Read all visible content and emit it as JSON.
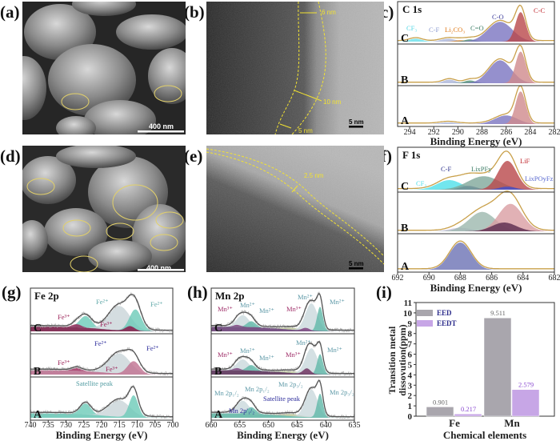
{
  "panel_labels": [
    "(a)",
    "(b)",
    "(c)",
    "(d)",
    "(e)",
    "(f)",
    "(g)",
    "(h)",
    "(i)"
  ],
  "images": {
    "a": {
      "kind": "SEM",
      "scale_bar": "400 nm"
    },
    "b": {
      "kind": "TEM",
      "scale_bar": "5 nm",
      "measurements": [
        "6 nm",
        "10 nm",
        "5 nm"
      ]
    },
    "d": {
      "kind": "SEM",
      "scale_bar": "400 nm"
    },
    "e": {
      "kind": "TEM",
      "scale_bar": "5 nm",
      "measurements": [
        "2.5 nm"
      ]
    }
  },
  "colors": {
    "envelope_cf": "#c9a04a",
    "envelope_fe_mn": "#555555",
    "eed": "#a9a6ad",
    "eedt": "#c7a6e6",
    "annotation_yellow": "#f2e232"
  },
  "chart_data": [
    {
      "panel": "c",
      "type": "area",
      "title": "C 1s",
      "xlabel": "Binding Energy (eV)",
      "xlim": [
        295,
        282
      ],
      "xticks": [
        294,
        292,
        290,
        288,
        286,
        284,
        282
      ],
      "row_labels": [
        "C",
        "B",
        "A"
      ],
      "spectra": [
        {
          "name": "C",
          "components": [
            {
              "center": 293.5,
              "fwhm": 1.2,
              "height": 0.08,
              "color": "#66e0ea"
            },
            {
              "center": 290.8,
              "fwhm": 1.4,
              "height": 0.08,
              "color": "#aab4d8"
            },
            {
              "center": 289.8,
              "fwhm": 1.0,
              "height": 0.04,
              "color": "#e58a2a"
            },
            {
              "center": 289.0,
              "fwhm": 1.1,
              "height": 0.06,
              "color": "#4c8c72"
            },
            {
              "center": 286.5,
              "fwhm": 2.4,
              "height": 0.55,
              "color": "#7b74c0"
            },
            {
              "center": 284.8,
              "fwhm": 1.0,
              "height": 0.82,
              "color": "#b9474a"
            }
          ]
        },
        {
          "name": "B",
          "components": [
            {
              "center": 290.7,
              "fwhm": 1.2,
              "height": 0.1,
              "color": "#aab4d8"
            },
            {
              "center": 289.0,
              "fwhm": 1.1,
              "height": 0.08,
              "color": "#4c8c72"
            },
            {
              "center": 286.5,
              "fwhm": 2.2,
              "height": 0.65,
              "color": "#7b74c0"
            },
            {
              "center": 284.8,
              "fwhm": 1.0,
              "height": 0.9,
              "color": "#d08a8c"
            }
          ]
        },
        {
          "name": "A",
          "components": [
            {
              "center": 290.8,
              "fwhm": 1.6,
              "height": 0.05,
              "color": "#aab4d8"
            },
            {
              "center": 286.0,
              "fwhm": 2.2,
              "height": 0.25,
              "color": "#7b74c0"
            },
            {
              "center": 284.8,
              "fwhm": 1.0,
              "height": 0.95,
              "color": "#d08a8c"
            }
          ]
        }
      ],
      "annotations": [
        {
          "text": "CF₃",
          "color": "#55d8e6"
        },
        {
          "text": "C-F",
          "color": "#8c9ad0"
        },
        {
          "text": "Li₂CO₃",
          "color": "#e07a18"
        },
        {
          "text": "C=O",
          "color": "#3d7d66"
        },
        {
          "text": "C-O",
          "color": "#3a3a9a"
        },
        {
          "text": "C-C",
          "color": "#c0272d"
        }
      ]
    },
    {
      "panel": "f",
      "type": "area",
      "title": "F 1s",
      "xlabel": "Binding Energy (eV)",
      "xlim": [
        692,
        682
      ],
      "xticks": [
        692,
        690,
        688,
        686,
        684,
        682
      ],
      "row_labels": [
        "C",
        "B",
        "A"
      ],
      "spectra": [
        {
          "name": "C",
          "components": [
            {
              "center": 688.7,
              "fwhm": 1.8,
              "height": 0.25,
              "color": "#4fe0ea"
            },
            {
              "center": 687.5,
              "fwhm": 1.2,
              "height": 0.1,
              "color": "#2a2f8a"
            },
            {
              "center": 686.5,
              "fwhm": 2.4,
              "height": 0.35,
              "color": "#7fa89a"
            },
            {
              "center": 685.0,
              "fwhm": 1.4,
              "height": 0.75,
              "color": "#b9474a"
            },
            {
              "center": 685.0,
              "fwhm": 1.2,
              "height": 0.08,
              "color": "#3d4fd0"
            }
          ]
        },
        {
          "name": "B",
          "components": [
            {
              "center": 688.0,
              "fwhm": 1.6,
              "height": 0.1,
              "color": "#c9c0dc"
            },
            {
              "center": 686.6,
              "fwhm": 2.0,
              "height": 0.55,
              "color": "#9cb8ae"
            },
            {
              "center": 684.8,
              "fwhm": 1.8,
              "height": 0.78,
              "color": "#d99ea2"
            },
            {
              "center": 685.2,
              "fwhm": 1.8,
              "height": 0.25,
              "color": "#5a2a4e"
            }
          ]
        },
        {
          "name": "A",
          "components": [
            {
              "center": 688.0,
              "fwhm": 1.6,
              "height": 0.85,
              "color": "#6b72b4"
            }
          ]
        }
      ],
      "annotations": [
        {
          "text": "CF₃",
          "color": "#4fe0ea"
        },
        {
          "text": "C-F",
          "color": "#2a2f8a"
        },
        {
          "text": "LixPFy",
          "color": "#3d7d66"
        },
        {
          "text": "LiF",
          "color": "#c0272d"
        },
        {
          "text": "LixPOyFz",
          "color": "#5a6ad0"
        }
      ]
    },
    {
      "panel": "g",
      "type": "line",
      "title": "Fe 2p",
      "xlabel": "Binding Energy (eV)",
      "xlim": [
        740,
        700
      ],
      "xticks": [
        740,
        735,
        730,
        725,
        720,
        715,
        710,
        705,
        700
      ],
      "row_labels": [
        "C",
        "B",
        "A"
      ],
      "spectra": [
        {
          "name": "C",
          "components": [
            {
              "center": 724.5,
              "fwhm": 4,
              "height": 0.3,
              "color": "#6ccab8"
            },
            {
              "center": 727,
              "fwhm": 3,
              "height": 0.08,
              "color": "#9a1f55"
            },
            {
              "center": 715,
              "fwhm": 7,
              "height": 0.62,
              "color": "#c9d4d8"
            },
            {
              "center": 710.5,
              "fwhm": 4,
              "height": 0.55,
              "color": "#6ccab8"
            },
            {
              "center": 712,
              "fwhm": 3,
              "height": 0.12,
              "color": "#8a1044"
            }
          ]
        },
        {
          "name": "B",
          "components": [
            {
              "center": 727,
              "fwhm": 3,
              "height": 0.08,
              "color": "#9a1f55"
            },
            {
              "center": 715,
              "fwhm": 7,
              "height": 0.55,
              "color": "#c9d4d8"
            },
            {
              "center": 711,
              "fwhm": 4,
              "height": 0.35,
              "color": "#c07090"
            }
          ]
        },
        {
          "name": "A",
          "components": [
            {
              "center": 724.5,
              "fwhm": 3.5,
              "height": 0.3,
              "color": "#6ccab8"
            },
            {
              "center": 715,
              "fwhm": 7,
              "height": 0.45,
              "color": "#c9d4d8"
            },
            {
              "center": 711,
              "fwhm": 3,
              "height": 0.6,
              "color": "#6ccab8"
            }
          ]
        }
      ],
      "annotations": [
        {
          "text": "Fe²⁺",
          "color": "#5fa8a8"
        },
        {
          "text": "Fe²⁺",
          "color": "#5fa8a8"
        },
        {
          "text": "Fe³⁺",
          "color": "#9a1f55"
        },
        {
          "text": "Fe³⁺",
          "color": "#9a1f55"
        },
        {
          "text": "Fe²⁺",
          "color": "#2a2a9a"
        },
        {
          "text": "Fe²⁺",
          "color": "#2a2a9a"
        },
        {
          "text": "Fe³⁺",
          "color": "#9a1f55"
        },
        {
          "text": "Fe³⁺",
          "color": "#9a1f55"
        },
        {
          "text": "Satellite peak",
          "color": "#4f9aa0"
        }
      ]
    },
    {
      "panel": "h",
      "type": "line",
      "title": "Mn 2p",
      "xlabel": "Binding Energy (eV)",
      "xlim": [
        660,
        635
      ],
      "xticks": [
        660,
        655,
        650,
        645,
        640,
        635
      ],
      "row_labels": [
        "C",
        "B",
        "A"
      ],
      "spectra": [
        {
          "name": "C",
          "components": [
            {
              "center": 654.5,
              "fwhm": 2.5,
              "height": 0.3,
              "color": "#c9d8dc"
            },
            {
              "center": 653,
              "fwhm": 1.8,
              "height": 0.15,
              "color": "#5fb8a8"
            },
            {
              "center": 655.5,
              "fwhm": 1.5,
              "height": 0.05,
              "color": "#7a3a7a"
            },
            {
              "center": 646,
              "fwhm": 4,
              "height": 0.05,
              "color": "#b8c090"
            },
            {
              "center": 642.5,
              "fwhm": 2.5,
              "height": 0.7,
              "color": "#c9d8dc"
            },
            {
              "center": 641,
              "fwhm": 1.2,
              "height": 0.62,
              "color": "#5fb8a8"
            },
            {
              "center": 643.5,
              "fwhm": 1.5,
              "height": 0.07,
              "color": "#7a3a7a"
            }
          ]
        },
        {
          "name": "B",
          "components": [
            {
              "center": 654.5,
              "fwhm": 2.5,
              "height": 0.3,
              "color": "#c9d8dc"
            },
            {
              "center": 653,
              "fwhm": 1.8,
              "height": 0.15,
              "color": "#5fb8a8"
            },
            {
              "center": 655.5,
              "fwhm": 1.5,
              "height": 0.06,
              "color": "#7a3a7a"
            },
            {
              "center": 646,
              "fwhm": 4,
              "height": 0.05,
              "color": "#b8c090"
            },
            {
              "center": 642.5,
              "fwhm": 2.5,
              "height": 0.7,
              "color": "#c9d8dc"
            },
            {
              "center": 641,
              "fwhm": 1.2,
              "height": 0.55,
              "color": "#5fb8a8"
            },
            {
              "center": 643.3,
              "fwhm": 1.5,
              "height": 0.15,
              "color": "#6a2a5a"
            }
          ]
        },
        {
          "name": "A",
          "components": [
            {
              "center": 654.5,
              "fwhm": 2.5,
              "height": 0.35,
              "color": "#c9d8dc"
            },
            {
              "center": 653,
              "fwhm": 1.8,
              "height": 0.18,
              "color": "#5fb8a8"
            },
            {
              "center": 646,
              "fwhm": 4,
              "height": 0.06,
              "color": "#b8c090"
            },
            {
              "center": 642.5,
              "fwhm": 2.5,
              "height": 0.75,
              "color": "#c9d8dc"
            },
            {
              "center": 641,
              "fwhm": 1.2,
              "height": 0.65,
              "color": "#5fb8a8"
            }
          ]
        }
      ],
      "annotations": [
        {
          "text": "Mn³⁺",
          "color": "#a0306a"
        },
        {
          "text": "Mn²⁺",
          "color": "#5f9aa8"
        },
        {
          "text": "Mn²⁺",
          "color": "#5f9aa8"
        },
        {
          "text": "Mn³⁺",
          "color": "#a0306a"
        },
        {
          "text": "Mn²⁺",
          "color": "#5f9aa8"
        },
        {
          "text": "Mn²⁺",
          "color": "#5f9aa8"
        },
        {
          "text": "Mn³⁺",
          "color": "#a0306a"
        },
        {
          "text": "Mn²⁺",
          "color": "#5f9aa8"
        },
        {
          "text": "Mn²⁺",
          "color": "#5f9aa8"
        },
        {
          "text": "Mn³⁺",
          "color": "#a0306a"
        },
        {
          "text": "Mn²⁺",
          "color": "#5f9aa8"
        },
        {
          "text": "Mn²⁺",
          "color": "#5f9aa8"
        },
        {
          "text": "Mn 2p₁/₂",
          "color": "#5f9aa8"
        },
        {
          "text": "Mn 2p₁/₂",
          "color": "#5f9aa8"
        },
        {
          "text": "Mn 2p₃/₂",
          "color": "#5f9aa8"
        },
        {
          "text": "Mn 2p₃/₂",
          "color": "#5f9aa8"
        },
        {
          "text": "Satellite peak",
          "color": "#2a2a9a"
        },
        {
          "text": "Mn 2p'₁/₂",
          "color": "#2a2a9a"
        }
      ]
    },
    {
      "panel": "i",
      "type": "bar",
      "xlabel": "Chemical elements",
      "ylabel": "Transition metal dissovution(ppm)",
      "ylabel_lines": [
        "Transition metal",
        "dissovution(ppm)"
      ],
      "ylim": [
        0,
        11
      ],
      "yticks": [
        0,
        1,
        2,
        3,
        4,
        5,
        6,
        7,
        8,
        9,
        10,
        11
      ],
      "categories": [
        "Fe",
        "Mn"
      ],
      "series": [
        {
          "name": "EED",
          "values": [
            0.901,
            9.511
          ],
          "labels": [
            "0.901",
            "9.511"
          ],
          "color": "#a9a6ad"
        },
        {
          "name": "EEDT",
          "values": [
            0.217,
            2.579
          ],
          "labels": [
            "0.217",
            "2.579"
          ],
          "color": "#c7a6e6"
        }
      ],
      "legend": "top-left"
    }
  ]
}
